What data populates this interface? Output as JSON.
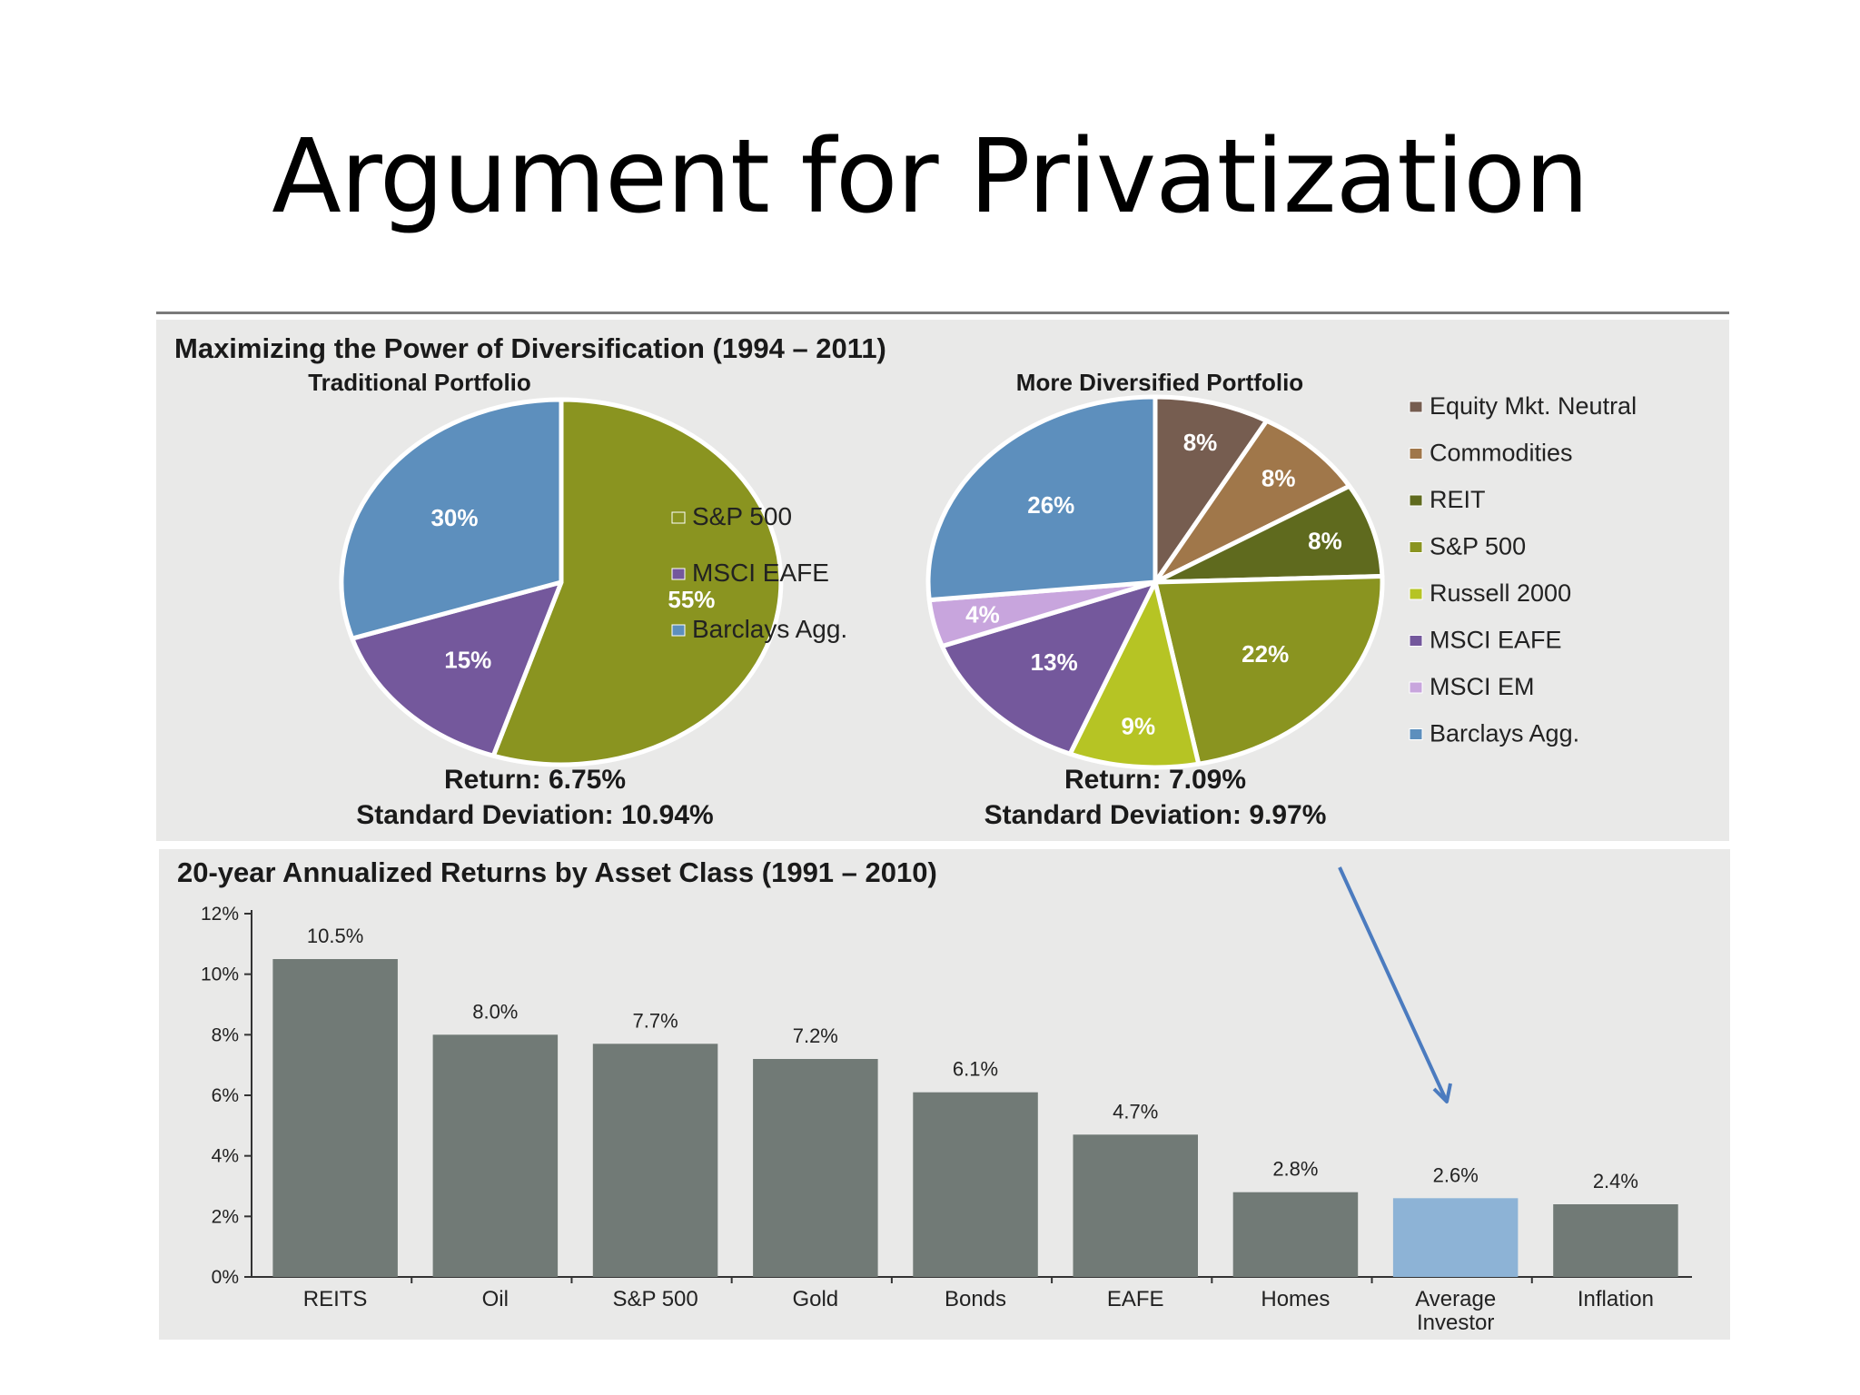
{
  "slide": {
    "title": "Argument for Privatization"
  },
  "colors": {
    "sp500": "#8a9420",
    "msci_eafe": "#74589c",
    "barclays": "#5d8fbd",
    "equity_mkt_neutral": "#765d50",
    "commodities": "#a0774a",
    "reit": "#5f6a1e",
    "russell2000": "#b6c424",
    "msci_em": "#c8a5dd",
    "bar": "#717a76",
    "bar_highlight": "#8db3d6",
    "arrow": "#4b7bbf",
    "panel": "#e9e9e8"
  },
  "chart_data": [
    {
      "type": "pie",
      "panel_title": "Maximizing the Power of Diversification (1994 – 2011)",
      "title": "Traditional Portfolio",
      "slices": [
        {
          "name": "S&P 500",
          "value": 55,
          "label": "55%",
          "color": "#8a9420"
        },
        {
          "name": "MSCI EAFE",
          "value": 15,
          "label": "15%",
          "color": "#74589c"
        },
        {
          "name": "Barclays Agg.",
          "value": 30,
          "label": "30%",
          "color": "#5d8fbd"
        }
      ],
      "legend": [
        "S&P 500",
        "MSCI EAFE",
        "Barclays Agg."
      ],
      "legend_colors": [
        "#8a9420",
        "#74589c",
        "#5d8fbd"
      ],
      "return_text": "Return: 6.75%",
      "stdev_text": "Standard Deviation: 10.94%"
    },
    {
      "type": "pie",
      "title": "More Diversified Portfolio",
      "slices": [
        {
          "name": "Equity Mkt. Neutral",
          "value": 8,
          "label": "8%",
          "color": "#765d50"
        },
        {
          "name": "Commodities",
          "value": 8,
          "label": "8%",
          "color": "#a0774a"
        },
        {
          "name": "REIT",
          "value": 8,
          "label": "8%",
          "color": "#5f6a1e"
        },
        {
          "name": "S&P 500",
          "value": 22,
          "label": "22%",
          "color": "#8a9420"
        },
        {
          "name": "Russell 2000",
          "value": 9,
          "label": "9%",
          "color": "#b6c424"
        },
        {
          "name": "MSCI EAFE",
          "value": 13,
          "label": "13%",
          "color": "#74589c"
        },
        {
          "name": "MSCI EM",
          "value": 4,
          "label": "4%",
          "color": "#c8a5dd"
        },
        {
          "name": "Barclays Agg.",
          "value": 26,
          "label": "26%",
          "color": "#5d8fbd"
        }
      ],
      "legend": [
        "Equity Mkt. Neutral",
        "Commodities",
        "REIT",
        "S&P 500",
        "Russell 2000",
        "MSCI EAFE",
        "MSCI EM",
        "Barclays Agg."
      ],
      "legend_colors": [
        "#765d50",
        "#a0774a",
        "#5f6a1e",
        "#8a9420",
        "#b6c424",
        "#74589c",
        "#c8a5dd",
        "#5d8fbd"
      ],
      "return_text": "Return: 7.09%",
      "stdev_text": "Standard Deviation: 9.97%"
    },
    {
      "type": "bar",
      "title": "20-year Annualized Returns by Asset Class (1991 – 2010)",
      "categories": [
        "REITS",
        "Oil",
        "S&P 500",
        "Gold",
        "Bonds",
        "EAFE",
        "Homes",
        "Average Investor",
        "Inflation"
      ],
      "category_lines": [
        [
          "REITS"
        ],
        [
          "Oil"
        ],
        [
          "S&P 500"
        ],
        [
          "Gold"
        ],
        [
          "Bonds"
        ],
        [
          "EAFE"
        ],
        [
          "Homes"
        ],
        [
          "Average",
          "Investor"
        ],
        [
          "Inflation"
        ]
      ],
      "values": [
        10.5,
        8.0,
        7.7,
        7.2,
        6.1,
        4.7,
        2.8,
        2.6,
        2.4
      ],
      "value_labels": [
        "10.5%",
        "8.0%",
        "7.7%",
        "7.2%",
        "6.1%",
        "4.7%",
        "2.8%",
        "2.6%",
        "2.4%"
      ],
      "highlight_index": 7,
      "ylim": [
        0,
        12
      ],
      "yticks": [
        "0%",
        "2%",
        "4%",
        "6%",
        "8%",
        "10%",
        "12%"
      ],
      "ytick_values": [
        0,
        2,
        4,
        6,
        8,
        10,
        12
      ],
      "grid": false
    }
  ]
}
